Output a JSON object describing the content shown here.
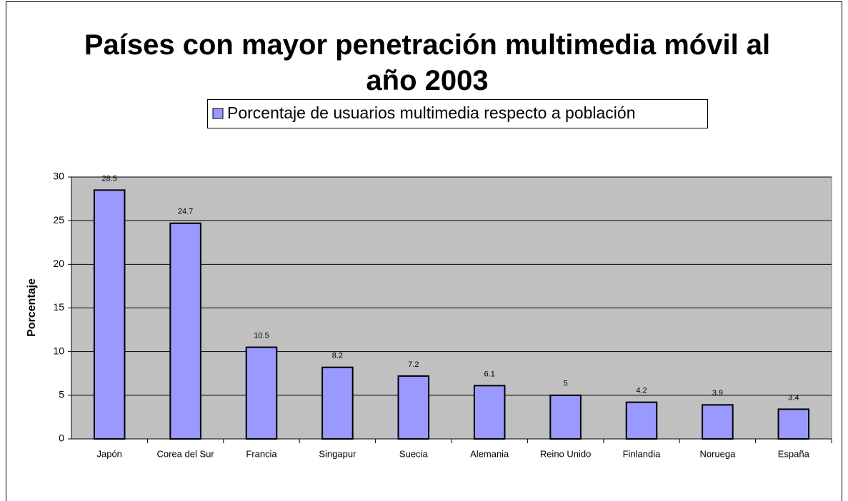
{
  "chart_data": {
    "type": "bar",
    "title": "Países con mayor penetración multimedia móvil al año 2003",
    "y_label": "Porcentaje",
    "categories": [
      "Japón",
      "Corea del Sur",
      "Francia",
      "Singapur",
      "Suecia",
      "Alemania",
      "Reino Unido",
      "Finlandia",
      "Noruega",
      "España"
    ],
    "series": [
      {
        "name": "Porcentaje de usuarios multimedia respecto a población",
        "color": "#9999ff",
        "values": [
          28.5,
          24.7,
          10.5,
          8.2,
          7.2,
          6.1,
          5,
          4.2,
          3.9,
          3.4
        ]
      }
    ],
    "ylim": [
      0,
      30
    ],
    "yticks": [
      0,
      5,
      10,
      15,
      20,
      25,
      30
    ],
    "grid": true,
    "plot_background": "#c0c0c0"
  }
}
